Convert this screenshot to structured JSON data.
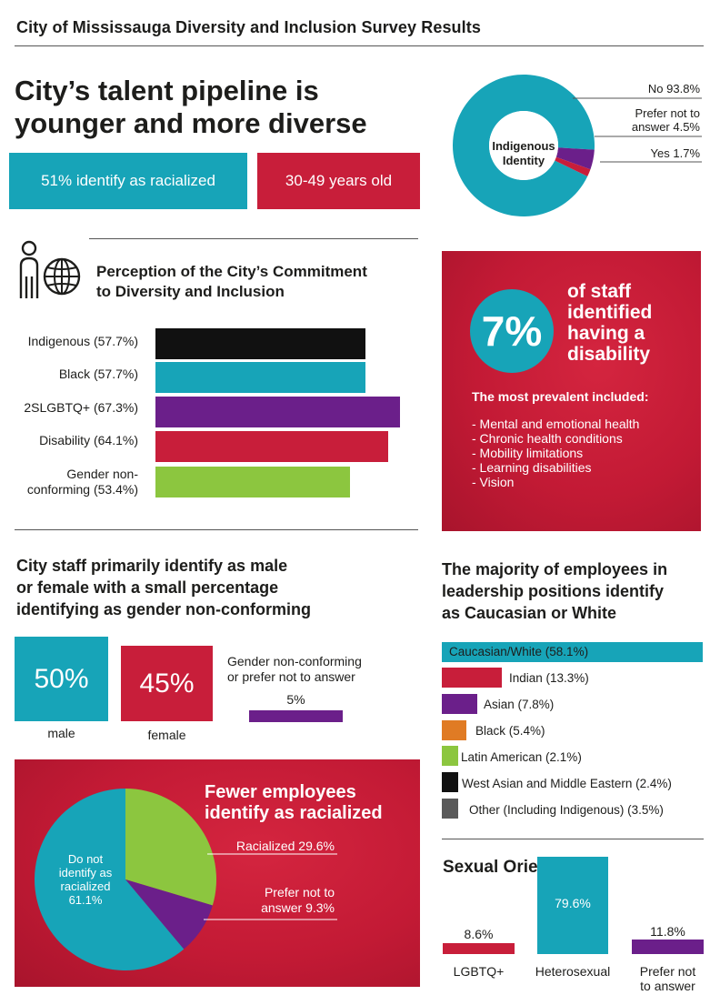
{
  "header": {
    "title": "City of Mississauga Diversity and Inclusion Survey Results"
  },
  "pipeline": {
    "title_line1": "City’s talent pipeline is",
    "title_line2": "younger and more diverse",
    "stat_racialized": "51% identify as racialized",
    "stat_age": "30-49 years old"
  },
  "indigenous": {
    "center_line1": "Indigenous",
    "center_line2": "Identity",
    "label_no": "No 93.8%",
    "label_prefer_line1": "Prefer not to",
    "label_prefer_line2": "answer 4.5%",
    "label_yes": "Yes 1.7%",
    "values": {
      "no": 93.8,
      "prefer_not": 4.5,
      "yes": 1.7
    }
  },
  "commitment": {
    "title_line1": "Perception of the City’s Commitment",
    "title_line2": "to Diversity and Inclusion",
    "bars": [
      {
        "label": "Indigenous (57.7%)",
        "value": 57.7,
        "color": "#111111"
      },
      {
        "label": "Black (57.7%)",
        "value": 57.7,
        "color": "#17a4b8"
      },
      {
        "label": "2SLGBTQ+ (67.3%)",
        "value": 67.3,
        "color": "#6b1f8a"
      },
      {
        "label": "Disability (64.1%)",
        "value": 64.1,
        "color": "#c81e3a"
      },
      {
        "label_line1": "Gender non-",
        "label_line2": "conforming (53.4%)",
        "value": 53.4,
        "color": "#8cc63f"
      }
    ]
  },
  "disability": {
    "percent": "7%",
    "headline_line1": "of staff",
    "headline_line2": "identified",
    "headline_line3": "having a",
    "headline_line4": "disability",
    "subhead": "The most prevalent included:",
    "items": [
      "- Mental and emotional health",
      "- Chronic health conditions",
      "- Mobility limitations",
      "- Learning disabilities",
      "- Vision"
    ]
  },
  "gender": {
    "title_line1": "City staff primarily identify as male",
    "title_line2": "or female with a small percentage",
    "title_line3": "identifying as gender non-conforming",
    "male_value": "50%",
    "male_label": "male",
    "female_value": "45%",
    "female_label": "female",
    "other_label_line1": "Gender non-conforming",
    "other_label_line2": "or prefer not to answer",
    "other_value": "5%",
    "values": {
      "male": 50,
      "female": 45,
      "other": 5
    }
  },
  "leadership": {
    "title_line1": "The majority of employees in",
    "title_line2": "leadership positions identify",
    "title_line3": "as Caucasian or White",
    "bars": [
      {
        "label": "Caucasian/White (58.1%)",
        "value": 58.1,
        "color": "#17a4b8"
      },
      {
        "label": "Indian (13.3%)",
        "value": 13.3,
        "color": "#c81e3a"
      },
      {
        "label": "Asian (7.8%)",
        "value": 7.8,
        "color": "#6b1f8a"
      },
      {
        "label": "Black (5.4%)",
        "value": 5.4,
        "color": "#e07b24"
      },
      {
        "label": "Latin American (2.1%)",
        "value": 2.1,
        "color": "#8cc63f"
      },
      {
        "label": "West Asian and Middle Eastern (2.4%)",
        "value": 2.4,
        "color": "#111111"
      },
      {
        "label": "Other (Including Indigenous) (3.5%)",
        "value": 3.5,
        "color": "#5a5a5a"
      }
    ]
  },
  "racialized": {
    "title_line1": "Fewer employees",
    "title_line2": "identify as racialized",
    "label_racialized": "Racialized 29.6%",
    "label_prefer_line1": "Prefer not to",
    "label_prefer_line2": "answer 9.3%",
    "label_not_line1": "Do not",
    "label_not_line2": "identify as",
    "label_not_line3": "racialized",
    "label_not_line4": "61.1%",
    "values": {
      "racialized": 29.6,
      "prefer_not": 9.3,
      "not_racialized": 61.1
    }
  },
  "orientation": {
    "title": "Sexual Orientation",
    "bars": [
      {
        "value_label": "8.6%",
        "label": "LGBTQ+",
        "value": 8.6,
        "color": "#c81e3a"
      },
      {
        "value_label": "79.6%",
        "label": "Heterosexual",
        "value": 79.6,
        "color": "#17a4b8"
      },
      {
        "value_label": "11.8%",
        "label_line1": "Prefer not",
        "label_line2": "to answer",
        "value": 11.8,
        "color": "#6b1f8a"
      }
    ]
  },
  "colors": {
    "teal": "#17a4b8",
    "red": "#c81e3a",
    "purple": "#6b1f8a",
    "green": "#8cc63f",
    "black": "#111111",
    "orange": "#e07b24",
    "grey": "#5a5a5a"
  },
  "icons": {
    "commitment_icon": "person-globe-icon"
  }
}
